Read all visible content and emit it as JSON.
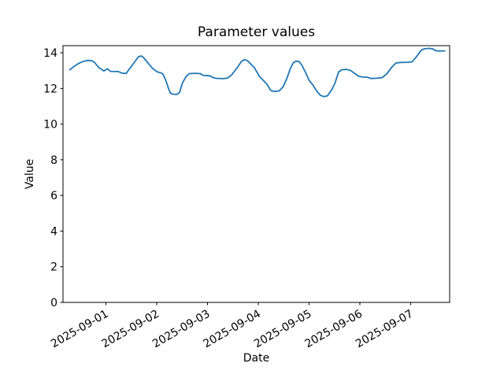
{
  "chart_data": {
    "type": "line",
    "title": "Parameter values",
    "xlabel": "Date",
    "ylabel": "Value",
    "grid": false,
    "legend": null,
    "x_unit": "days since 2025-09-01 00:00",
    "xlim": [
      -0.845,
      6.768
    ],
    "ylim": [
      0,
      14.4
    ],
    "x_tick_values": [
      0,
      1,
      2,
      3,
      4,
      5,
      6
    ],
    "x_tick_labels": [
      "2025-09-01",
      "2025-09-02",
      "2025-09-03",
      "2025-09-04",
      "2025-09-05",
      "2025-09-06",
      "2025-09-07"
    ],
    "x_tick_rotation_deg": 30,
    "y_tick_values": [
      0,
      2,
      4,
      6,
      8,
      10,
      12,
      14
    ],
    "y_tick_labels": [
      "0",
      "2",
      "4",
      "6",
      "8",
      "10",
      "12",
      "14"
    ],
    "series": [
      {
        "name": "parameter-values",
        "color": "#1f77b4",
        "line_width": 1.8,
        "points": [
          [
            -0.71,
            13.05
          ],
          [
            -0.62,
            13.25
          ],
          [
            -0.53,
            13.42
          ],
          [
            -0.44,
            13.52
          ],
          [
            -0.36,
            13.57
          ],
          [
            -0.28,
            13.56
          ],
          [
            -0.22,
            13.45
          ],
          [
            -0.15,
            13.2
          ],
          [
            -0.04,
            12.98
          ],
          [
            0.03,
            13.1
          ],
          [
            0.09,
            12.96
          ],
          [
            0.24,
            12.95
          ],
          [
            0.32,
            12.86
          ],
          [
            0.4,
            12.84
          ],
          [
            0.45,
            13.05
          ],
          [
            0.55,
            13.43
          ],
          [
            0.64,
            13.78
          ],
          [
            0.69,
            13.82
          ],
          [
            0.73,
            13.76
          ],
          [
            0.81,
            13.5
          ],
          [
            0.91,
            13.15
          ],
          [
            1.01,
            12.93
          ],
          [
            1.07,
            12.89
          ],
          [
            1.12,
            12.82
          ],
          [
            1.18,
            12.45
          ],
          [
            1.23,
            12.02
          ],
          [
            1.27,
            11.73
          ],
          [
            1.32,
            11.68
          ],
          [
            1.4,
            11.67
          ],
          [
            1.45,
            11.78
          ],
          [
            1.51,
            12.33
          ],
          [
            1.58,
            12.68
          ],
          [
            1.64,
            12.83
          ],
          [
            1.76,
            12.85
          ],
          [
            1.86,
            12.83
          ],
          [
            1.91,
            12.74
          ],
          [
            2.05,
            12.71
          ],
          [
            2.1,
            12.62
          ],
          [
            2.16,
            12.57
          ],
          [
            2.3,
            12.55
          ],
          [
            2.39,
            12.58
          ],
          [
            2.47,
            12.74
          ],
          [
            2.59,
            13.18
          ],
          [
            2.67,
            13.52
          ],
          [
            2.73,
            13.62
          ],
          [
            2.79,
            13.55
          ],
          [
            2.92,
            13.18
          ],
          [
            3.02,
            12.68
          ],
          [
            3.17,
            12.25
          ],
          [
            3.24,
            11.9
          ],
          [
            3.31,
            11.83
          ],
          [
            3.41,
            11.86
          ],
          [
            3.49,
            12.1
          ],
          [
            3.56,
            12.55
          ],
          [
            3.63,
            13.1
          ],
          [
            3.69,
            13.45
          ],
          [
            3.74,
            13.53
          ],
          [
            3.8,
            13.52
          ],
          [
            3.86,
            13.3
          ],
          [
            3.93,
            12.9
          ],
          [
            4.0,
            12.46
          ],
          [
            4.08,
            12.18
          ],
          [
            4.15,
            11.85
          ],
          [
            4.22,
            11.62
          ],
          [
            4.29,
            11.54
          ],
          [
            4.36,
            11.58
          ],
          [
            4.44,
            11.9
          ],
          [
            4.51,
            12.3
          ],
          [
            4.58,
            12.92
          ],
          [
            4.64,
            13.05
          ],
          [
            4.73,
            13.07
          ],
          [
            4.81,
            13.02
          ],
          [
            4.87,
            12.9
          ],
          [
            4.97,
            12.7
          ],
          [
            5.03,
            12.65
          ],
          [
            5.15,
            12.63
          ],
          [
            5.22,
            12.56
          ],
          [
            5.32,
            12.57
          ],
          [
            5.44,
            12.61
          ],
          [
            5.53,
            12.82
          ],
          [
            5.63,
            13.2
          ],
          [
            5.71,
            13.43
          ],
          [
            5.8,
            13.46
          ],
          [
            5.95,
            13.47
          ],
          [
            6.03,
            13.5
          ],
          [
            6.12,
            13.8
          ],
          [
            6.2,
            14.12
          ],
          [
            6.26,
            14.22
          ],
          [
            6.36,
            14.25
          ],
          [
            6.44,
            14.22
          ],
          [
            6.48,
            14.13
          ],
          [
            6.55,
            14.1
          ],
          [
            6.67,
            14.11
          ]
        ]
      }
    ]
  },
  "colors": {
    "background": "#ffffff",
    "spines": "#000000",
    "tick_text": "#000000",
    "series_line": "#1f77b4"
  }
}
